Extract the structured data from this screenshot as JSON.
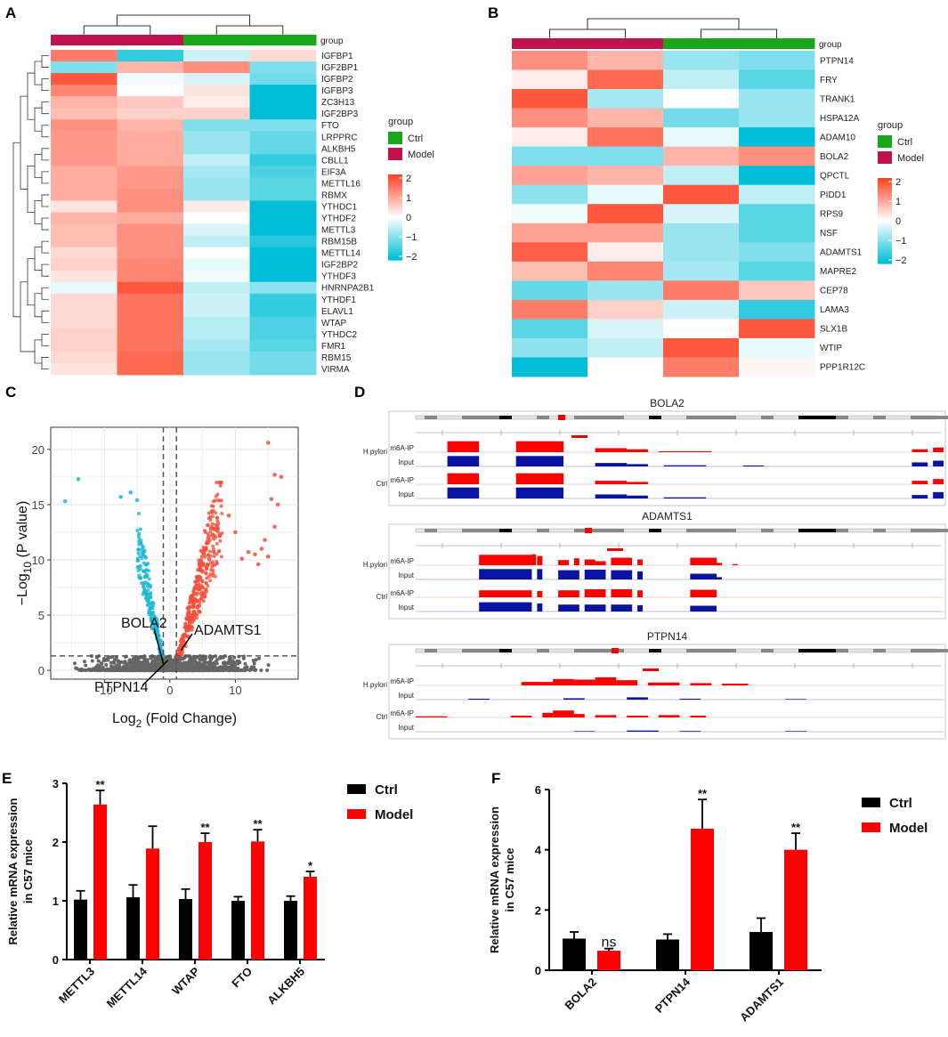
{
  "panels": {
    "A": "A",
    "B": "B",
    "C": "C",
    "D": "D",
    "E": "E",
    "F": "F"
  },
  "colors": {
    "ctrl_group": "#1BA51B",
    "model_group": "#C0124E",
    "high": "#FF4528",
    "low": "#00BED8",
    "bar_ctrl": "#000000",
    "bar_model": "#FF0000",
    "volcano_up": "#F2503C",
    "volcano_down": "#1AB7D4",
    "volcano_ns": "#666666"
  },
  "heatmap_legend": {
    "group_title": "group",
    "ctrl": "Ctrl",
    "model": "Model",
    "scale_ticks": [
      "2",
      "1",
      "0",
      "−1",
      "−2"
    ]
  },
  "chart_data": [
    {
      "id": "A",
      "type": "heatmap",
      "group_label": "group",
      "columns": [
        "Model",
        "Model",
        "Ctrl",
        "Ctrl"
      ],
      "scale": [
        -2,
        2
      ],
      "rows": [
        "IGFBP1",
        "IGF2BP1",
        "IGFBP2",
        "IGFBP3",
        "ZC3H13",
        "IGF2BP3",
        "FTO",
        "LRPPRC",
        "ALKBH5",
        "CBLL1",
        "EIF3A",
        "METTL16",
        "RBMX",
        "YTHDC1",
        "YTHDF2",
        "METTL3",
        "RBM15B",
        "METTL14",
        "IGF2BP2",
        "YTHDF3",
        "HNRNPA2B1",
        "YTHDF1",
        "ELAVL1",
        "WTAP",
        "YTHDC2",
        "FMR1",
        "RBM15",
        "VIRMA"
      ],
      "values": [
        [
          1.4,
          -1.6,
          -0.4,
          0.4
        ],
        [
          -1.0,
          0.8,
          1.2,
          -1.0
        ],
        [
          1.8,
          -0.1,
          -0.3,
          -1.1
        ],
        [
          1.3,
          0,
          0.3,
          -2
        ],
        [
          0.8,
          0.6,
          0.2,
          -2
        ],
        [
          0.7,
          0.5,
          0.5,
          -2
        ],
        [
          1.2,
          0.8,
          -1.0,
          -1.0
        ],
        [
          1.1,
          0.9,
          -0.8,
          -1.2
        ],
        [
          1.1,
          0.9,
          -0.8,
          -1.2
        ],
        [
          1.1,
          0.9,
          -0.5,
          -1.6
        ],
        [
          0.9,
          1.1,
          -0.7,
          -1.4
        ],
        [
          0.9,
          1.1,
          -0.8,
          -1.3
        ],
        [
          0.9,
          1.2,
          -0.8,
          -1.3
        ],
        [
          0.3,
          1.2,
          0.2,
          -2
        ],
        [
          0.8,
          0.9,
          0,
          -2
        ],
        [
          0.7,
          1.2,
          -0.3,
          -2
        ],
        [
          0.7,
          1.2,
          -0.5,
          -1.7
        ],
        [
          0.4,
          1.2,
          0,
          -2
        ],
        [
          0.5,
          1.3,
          -0.2,
          -2
        ],
        [
          0.3,
          1.3,
          -0.1,
          -2
        ],
        [
          -0.2,
          1.8,
          -0.5,
          -0.9
        ],
        [
          0.4,
          1.5,
          -0.4,
          -1.6
        ],
        [
          0.4,
          1.5,
          -0.4,
          -1.6
        ],
        [
          0.4,
          1.5,
          -0.6,
          -1.4
        ],
        [
          0.5,
          1.5,
          -0.6,
          -1.4
        ],
        [
          0.5,
          1.5,
          -0.7,
          -1.3
        ],
        [
          0.4,
          1.6,
          -0.8,
          -1.1
        ],
        [
          0.3,
          1.6,
          -0.8,
          -1.1
        ]
      ]
    },
    {
      "id": "B",
      "type": "heatmap",
      "group_label": "group",
      "columns": [
        "Model",
        "Model",
        "Ctrl",
        "Ctrl"
      ],
      "scale": [
        -2,
        2
      ],
      "rows": [
        "PTPN14",
        "FRY",
        "TRANK1",
        "HSPA12A",
        "ADAM10",
        "BOLA2",
        "QPCTL",
        "PIDD1",
        "RPS9",
        "NSF",
        "ADAMTS1",
        "MAPRE2",
        "CEP78",
        "LAMA3",
        "SLX1B",
        "WTIP",
        "PPP1R12C"
      ],
      "values": [
        [
          1.2,
          0.8,
          -0.8,
          -1.0
        ],
        [
          0.2,
          1.6,
          -0.5,
          -1.3
        ],
        [
          1.8,
          -0.7,
          0,
          -0.8
        ],
        [
          1.2,
          0.8,
          -1.1,
          -0.8
        ],
        [
          0.2,
          1.5,
          -0.2,
          -2
        ],
        [
          -1.0,
          -1.0,
          0.8,
          1.2
        ],
        [
          1.0,
          0.8,
          -0.5,
          -2
        ],
        [
          -0.9,
          -0.2,
          1.8,
          -0.5
        ],
        [
          -0.1,
          1.8,
          -0.3,
          -1.3
        ],
        [
          1.0,
          1.0,
          -0.8,
          -1.3
        ],
        [
          1.7,
          0.2,
          -0.8,
          -1.0
        ],
        [
          0.7,
          1.3,
          -0.7,
          -1.3
        ],
        [
          -1.2,
          -0.8,
          1.4,
          0.6
        ],
        [
          1.4,
          0.5,
          -0.4,
          -1.6
        ],
        [
          -1.3,
          -0.3,
          0,
          1.8
        ],
        [
          -0.9,
          -0.5,
          1.8,
          -0.2
        ],
        [
          -2,
          0,
          1.4,
          0.1
        ]
      ]
    },
    {
      "id": "C",
      "type": "scatter",
      "xlabel_main": "Log",
      "xlabel_sub": "2",
      "xlabel_rest": " (Fold Change)",
      "ylabel_main": "−Log",
      "ylabel_sub": "10",
      "ylabel_rest": " (P value)",
      "xlim": [
        -18.2,
        19.6
      ],
      "ylim": [
        -0.8,
        22
      ],
      "xticks": [
        "-10",
        "0",
        "10"
      ],
      "xtick_values": [
        -10,
        0,
        10
      ],
      "yticks": [
        "0",
        "5",
        "10",
        "15",
        "20"
      ],
      "ytick_values": [
        0,
        5,
        10,
        15,
        20
      ],
      "fc_threshold": 1,
      "p_threshold_log": 1.3,
      "annotations": [
        {
          "label": "BOLA2",
          "x": -1.0,
          "y": 0.6
        },
        {
          "label": "ADAMTS1",
          "x": 1.7,
          "y": 1.8
        },
        {
          "label": "PTPN14",
          "x": -0.3,
          "y": 0.9
        }
      ],
      "outliers_up": [
        [
          15,
          20.6
        ],
        [
          16,
          17.7
        ],
        [
          17,
          17.5
        ],
        [
          15.5,
          15.5
        ],
        [
          16.5,
          15
        ],
        [
          14,
          11
        ],
        [
          11,
          10.1
        ],
        [
          12,
          10.7
        ],
        [
          13,
          10.5
        ],
        [
          14.5,
          11.8
        ],
        [
          10,
          12.5
        ],
        [
          16,
          13
        ],
        [
          15,
          10.3
        ],
        [
          13.5,
          9.6
        ],
        [
          9,
          14
        ]
      ],
      "outliers_down": [
        [
          -16,
          15.3
        ],
        [
          -14,
          17.3
        ],
        [
          -7.5,
          15.7
        ],
        [
          -6,
          16.1
        ],
        [
          -5,
          15.4
        ]
      ]
    },
    {
      "id": "D",
      "type": "area",
      "group_labels": {
        "hp": "H.pylori",
        "ctrl": "Ctrl",
        "ip": "m6A-IP",
        "input": "Input"
      },
      "loci": [
        {
          "gene": "BOLA2",
          "ip_hp": [
            [
              6,
              12,
              0.95
            ],
            [
              19,
              28,
              0.95
            ],
            [
              34,
              40,
              0.35
            ],
            [
              40,
              44,
              0.25
            ],
            [
              46,
              56,
              0.08
            ],
            [
              94,
              97,
              0.25
            ],
            [
              98,
              100,
              0.4
            ]
          ],
          "in_hp": [
            [
              6,
              12,
              0.9
            ],
            [
              19,
              28,
              0.9
            ],
            [
              34,
              40,
              0.3
            ],
            [
              40,
              44,
              0.2
            ],
            [
              47,
              55,
              0.1
            ],
            [
              62,
              66,
              0.08
            ],
            [
              94,
              97,
              0.35
            ],
            [
              98,
              100,
              0.5
            ]
          ],
          "ip_ctrl": [
            [
              6,
              12,
              0.95
            ],
            [
              19,
              28,
              0.95
            ],
            [
              34,
              40,
              0.3
            ],
            [
              40,
              44,
              0.2
            ],
            [
              94,
              97,
              0.3
            ],
            [
              98,
              100,
              0.45
            ]
          ],
          "in_ctrl": [
            [
              6,
              12,
              0.95
            ],
            [
              19,
              28,
              0.95
            ],
            [
              34,
              40,
              0.35
            ],
            [
              40,
              44,
              0.25
            ],
            [
              47,
              55,
              0.1
            ],
            [
              94,
              97,
              0.3
            ],
            [
              98,
              100,
              0.55
            ]
          ]
        },
        {
          "gene": "ADAMTS1",
          "ip_hp": [
            [
              12,
              22,
              0.9
            ],
            [
              22,
              22.8,
              0.95
            ],
            [
              23,
              24,
              0.8
            ],
            [
              27,
              29,
              0.45
            ],
            [
              30,
              31,
              0.6
            ],
            [
              32,
              34,
              0.5
            ],
            [
              34,
              36,
              0.35
            ],
            [
              37,
              41,
              0.65
            ],
            [
              42,
              43,
              0.5
            ],
            [
              52,
              57,
              0.65
            ],
            [
              57,
              58,
              0.2
            ],
            [
              60,
              61,
              0.1
            ]
          ],
          "in_hp": [
            [
              12,
              22,
              0.9
            ],
            [
              23,
              24,
              0.9
            ],
            [
              27,
              31,
              0.8
            ],
            [
              32,
              36,
              0.85
            ],
            [
              37,
              41,
              0.8
            ],
            [
              42,
              43,
              0.7
            ],
            [
              52,
              57,
              0.5
            ],
            [
              57,
              58,
              0.2
            ]
          ],
          "ip_ctrl": [
            [
              12,
              22,
              0.6
            ],
            [
              23,
              24,
              0.55
            ],
            [
              27,
              31,
              0.6
            ],
            [
              32,
              36,
              0.7
            ],
            [
              37,
              41,
              0.7
            ],
            [
              42,
              43,
              0.6
            ],
            [
              52,
              57,
              0.65
            ]
          ],
          "in_ctrl": [
            [
              12,
              22,
              0.8
            ],
            [
              23,
              24,
              0.7
            ],
            [
              27,
              31,
              0.6
            ],
            [
              32,
              36,
              0.6
            ],
            [
              37,
              41,
              0.6
            ],
            [
              42,
              43,
              0.55
            ],
            [
              52,
              57,
              0.5
            ]
          ]
        },
        {
          "gene": "PTPN14",
          "ip_hp": [
            [
              20,
              26,
              0.3
            ],
            [
              26,
              30,
              0.55
            ],
            [
              30,
              34,
              0.5
            ],
            [
              34,
              38,
              0.7
            ],
            [
              38,
              42,
              0.45
            ],
            [
              44,
              50,
              0.25
            ],
            [
              52,
              56,
              0.2
            ],
            [
              58,
              63,
              0.15
            ]
          ],
          "in_hp": [
            [
              10,
              14,
              0.08
            ],
            [
              28,
              32,
              0.12
            ],
            [
              40,
              44,
              0.2
            ],
            [
              50,
              54,
              0.08
            ],
            [
              70,
              74,
              0.05
            ]
          ],
          "ip_ctrl": [
            [
              0,
              6,
              0.1
            ],
            [
              18,
              22,
              0.15
            ],
            [
              24,
              26,
              0.4
            ],
            [
              26,
              30,
              0.6
            ],
            [
              30,
              32,
              0.3
            ],
            [
              34,
              38,
              0.2
            ],
            [
              40,
              44,
              0.15
            ],
            [
              46,
              50,
              0.2
            ],
            [
              52,
              55,
              0.15
            ]
          ],
          "in_ctrl": [
            [
              30,
              34,
              0.05
            ],
            [
              40,
              46,
              0.1
            ],
            [
              50,
              54,
              0.06
            ],
            [
              70,
              74,
              0.05
            ]
          ]
        }
      ]
    },
    {
      "id": "E",
      "type": "bar",
      "ylabel_line1": "Relative mRNA expression",
      "ylabel_line2": "in C57 mice",
      "categories": [
        "METTL3",
        "METTL14",
        "WTAP",
        "FTO",
        "ALKBH5"
      ],
      "ylim": [
        0,
        3
      ],
      "yticks": [
        "0",
        "1",
        "2",
        "3"
      ],
      "ytick_values": [
        0,
        1,
        2,
        3
      ],
      "legend": [
        "Ctrl",
        "Model"
      ],
      "series": [
        {
          "name": "Ctrl",
          "values": [
            1.02,
            1.06,
            1.03,
            1.0,
            1.0
          ],
          "errors": [
            0.15,
            0.21,
            0.17,
            0.07,
            0.08
          ]
        },
        {
          "name": "Model",
          "values": [
            2.64,
            1.89,
            2.0,
            2.01,
            1.41
          ],
          "errors": [
            0.24,
            0.38,
            0.15,
            0.2,
            0.09
          ]
        }
      ],
      "significance": [
        "**",
        "",
        "**",
        "**",
        "*"
      ]
    },
    {
      "id": "F",
      "type": "bar",
      "ylabel_line1": "Relative mRNA expression",
      "ylabel_line2": "in C57 mice",
      "categories": [
        "BOLA2",
        "PTPN14",
        "ADAMTS1"
      ],
      "ylim": [
        0,
        6
      ],
      "yticks": [
        "0",
        "2",
        "4",
        "6"
      ],
      "ytick_values": [
        0,
        2,
        4,
        6
      ],
      "legend": [
        "Ctrl",
        "Model"
      ],
      "series": [
        {
          "name": "Ctrl",
          "values": [
            1.05,
            1.02,
            1.27
          ],
          "errors": [
            0.22,
            0.18,
            0.46
          ]
        },
        {
          "name": "Model",
          "values": [
            0.65,
            4.7,
            4.0
          ],
          "errors": [
            0.07,
            0.97,
            0.55
          ]
        }
      ],
      "significance": [
        "ns",
        "**",
        "**"
      ]
    }
  ]
}
